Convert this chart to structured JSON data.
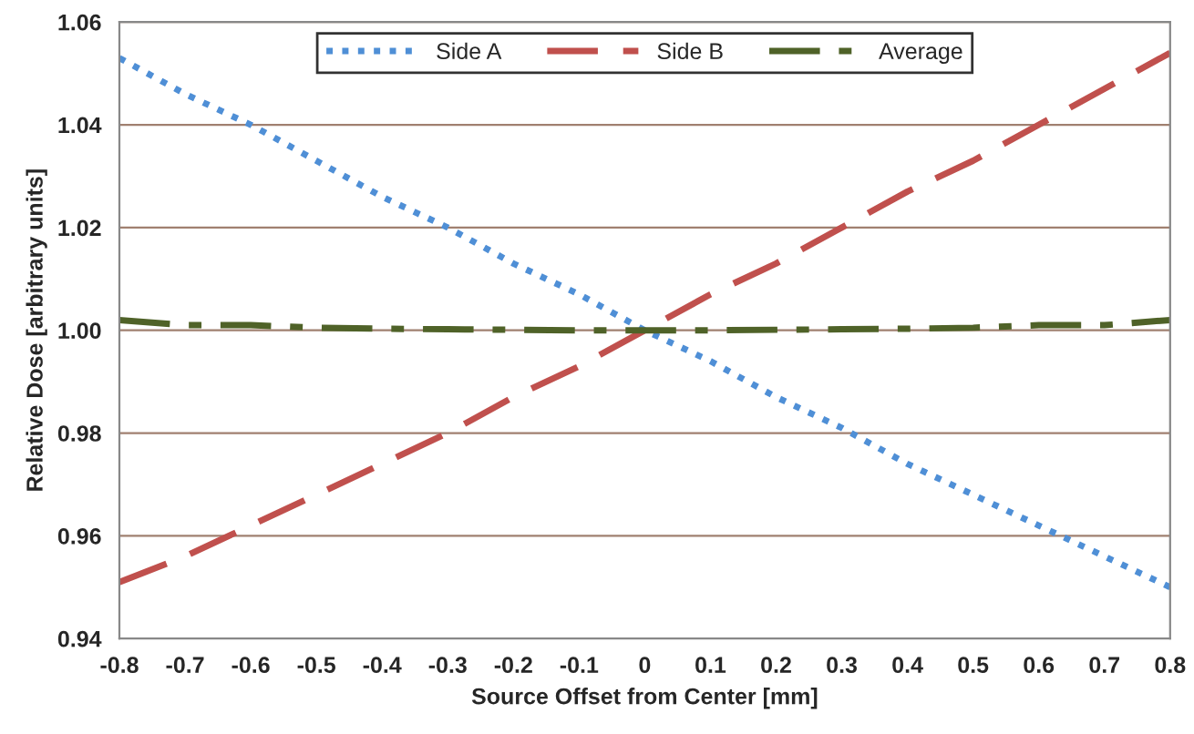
{
  "chart_data": {
    "type": "line",
    "xlabel": "Source Offset from Center [mm]",
    "ylabel": "Relative Dose [arbitrary units]",
    "x": [
      -0.8,
      -0.7,
      -0.6,
      -0.5,
      -0.4,
      -0.3,
      -0.2,
      -0.1,
      0,
      0.1,
      0.2,
      0.3,
      0.4,
      0.5,
      0.6,
      0.7,
      0.8
    ],
    "series": [
      {
        "name": "Side A",
        "color": "#4f8fd6",
        "line_style": "dotted",
        "values": [
          1.053,
          1.046,
          1.04,
          1.033,
          1.026,
          1.02,
          1.013,
          1.007,
          1.0,
          0.994,
          0.987,
          0.981,
          0.974,
          0.968,
          0.962,
          0.956,
          0.95
        ]
      },
      {
        "name": "Side B",
        "color": "#c0504d",
        "line_style": "dashed",
        "values": [
          0.951,
          0.956,
          0.962,
          0.968,
          0.974,
          0.98,
          0.987,
          0.993,
          1.0,
          1.007,
          1.013,
          1.02,
          1.027,
          1.033,
          1.04,
          1.047,
          1.054
        ]
      },
      {
        "name": "Average",
        "color": "#4f6228",
        "line_style": "dashdot",
        "values": [
          1.002,
          1.001,
          1.001,
          1.0005,
          1.0003,
          1.0002,
          1.0001,
          1.0,
          1.0,
          1.0,
          1.0001,
          1.0002,
          1.0003,
          1.0005,
          1.001,
          1.001,
          1.002
        ]
      }
    ],
    "xlim": [
      -0.8,
      0.8
    ],
    "ylim": [
      0.94,
      1.06
    ],
    "xticks": [
      -0.8,
      -0.7,
      -0.6,
      -0.5,
      -0.4,
      -0.3,
      -0.2,
      -0.1,
      0,
      0.1,
      0.2,
      0.3,
      0.4,
      0.5,
      0.6,
      0.7,
      0.8
    ],
    "yticks": [
      0.94,
      0.96,
      0.98,
      {
        "value": 1.0,
        "label": "1.00"
      },
      1.02,
      1.04,
      1.06
    ],
    "grid": "y",
    "legend": "top"
  }
}
